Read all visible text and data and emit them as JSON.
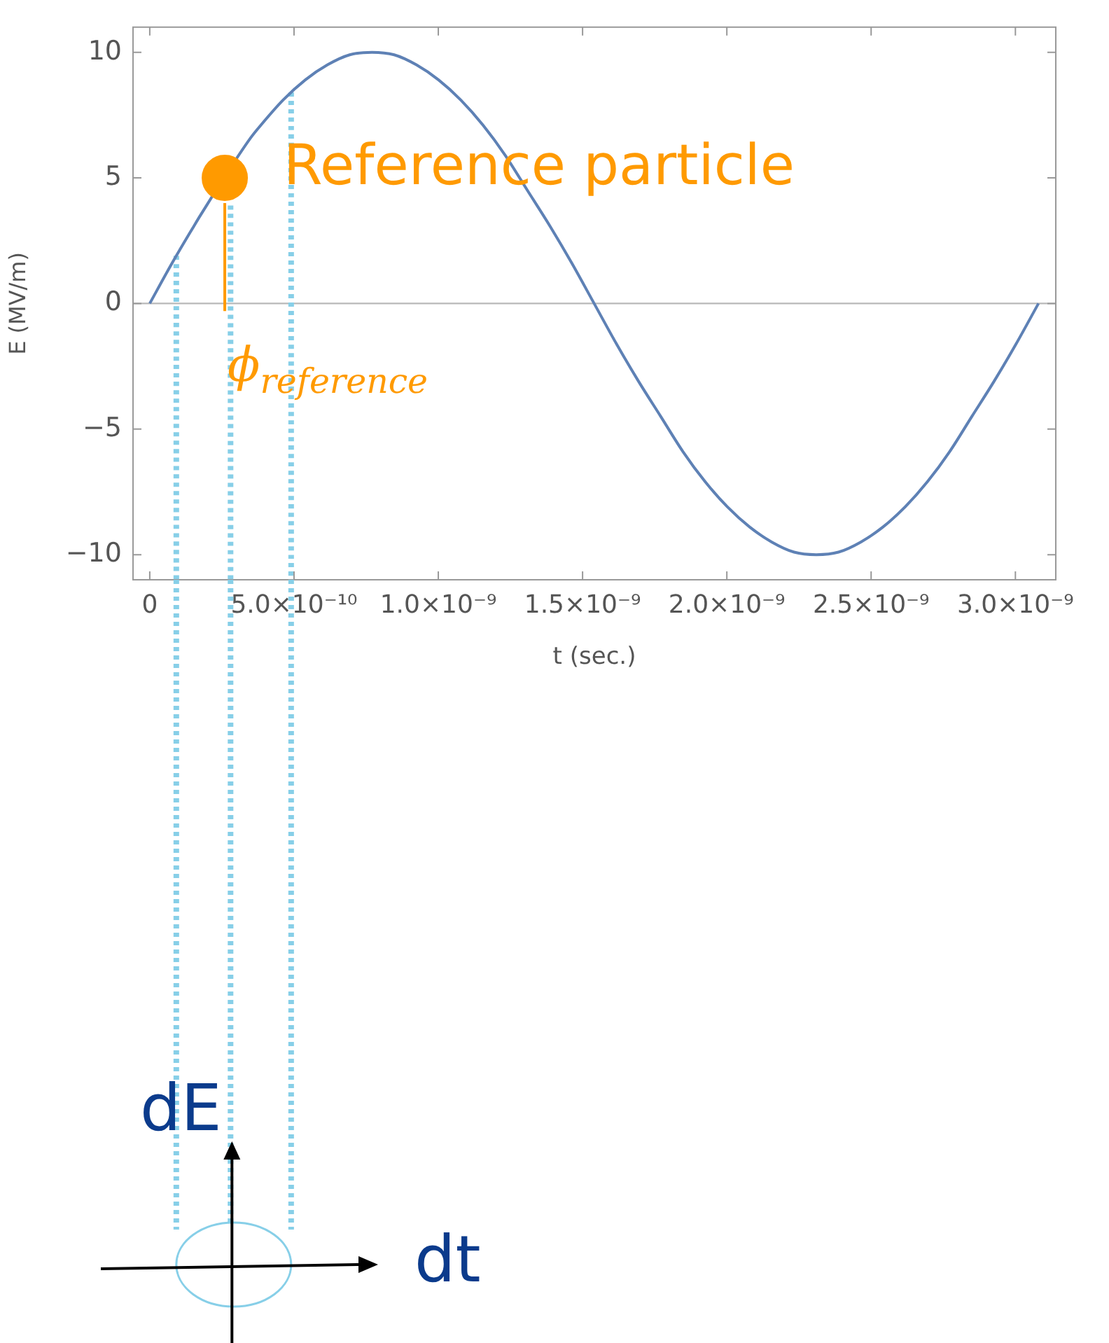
{
  "chart_data": {
    "type": "line",
    "xlabel": "t (sec.)",
    "ylabel": "E (MV/m)",
    "xlim": [
      -5.8e-11,
      3.14e-09
    ],
    "ylim": [
      -11,
      11
    ],
    "xticks": [
      0,
      {
        "value": 5e-10,
        "label": "5.0×10⁻¹⁰"
      },
      {
        "value": 1e-09,
        "label": "1.0×10⁻⁹"
      },
      {
        "value": 1.5e-09,
        "label": "1.5×10⁻⁹"
      },
      {
        "value": 2e-09,
        "label": "2.0×10⁻⁹"
      },
      {
        "value": 2.5e-09,
        "label": "2.5×10⁻⁹"
      },
      {
        "value": 3e-09,
        "label": "3.0×10⁻⁹"
      }
    ],
    "yticks": [
      -10,
      -5,
      0,
      5,
      10
    ],
    "grid": false,
    "legend": false,
    "ref_lines": [
      {
        "axis": "y",
        "value": 0,
        "color": "#b9b9b9"
      }
    ],
    "series": [
      {
        "color": "#5e81b5",
        "x": [
          0,
          7.7e-11,
          1.54e-10,
          1.75e-10,
          3.5e-10,
          3.85e-10,
          4.62e-10,
          5.39e-10,
          6.16e-10,
          6.93e-10,
          7.7e-10,
          8.47e-10,
          9.24e-10,
          1.001e-09,
          1.078e-09,
          1.155e-09,
          1.232e-09,
          1.309e-09,
          1.386e-09,
          1.463e-09,
          1.54e-09,
          1.617e-09,
          1.694e-09,
          1.771e-09,
          1.848e-09,
          1.925e-09,
          2.002e-09,
          2.079e-09,
          2.156e-09,
          2.233e-09,
          2.31e-09,
          2.387e-09,
          2.464e-09,
          2.541e-09,
          2.618e-09,
          2.695e-09,
          2.772e-09,
          2.849e-09,
          2.926e-09,
          3.003e-09,
          3.08e-09
        ],
        "values": [
          0,
          1.6,
          3.1,
          3.5,
          6.6,
          7.1,
          8.1,
          8.9,
          9.5,
          9.9,
          10,
          9.9,
          9.5,
          8.9,
          8.1,
          7.1,
          5.9,
          4.5,
          3.1,
          1.6,
          0,
          -1.6,
          -3.1,
          -4.5,
          -5.9,
          -7.1,
          -8.1,
          -8.9,
          -9.5,
          -9.9,
          -10,
          -9.9,
          -9.5,
          -8.9,
          -8.1,
          -7.1,
          -5.9,
          -4.5,
          -3.1,
          -1.6,
          0
        ],
        "marker": "none",
        "line_style": "solid"
      },
      {
        "color": "#87cfe8",
        "x": [
          9.2e-11,
          9.2e-11
        ],
        "values": [
          1.9,
          -11
        ],
        "marker": "none",
        "line_style": "dotted"
      },
      {
        "color": "#87cfe8",
        "x": [
          2.8e-10,
          2.8e-10
        ],
        "values": [
          3.9,
          -11
        ],
        "marker": "none",
        "line_style": "dotted"
      },
      {
        "color": "#87cfe8",
        "x": [
          4.9e-10,
          4.9e-10
        ],
        "values": [
          8.4,
          -11
        ],
        "marker": "none",
        "line_style": "dotted"
      },
      {
        "color": "#ff9a00",
        "x": [
          2.6e-10,
          2.6e-10
        ],
        "values": [
          4,
          -0.3
        ],
        "marker": "none",
        "line_style": "solid"
      },
      {
        "type": "scatter",
        "color": "#ff9a00",
        "x": [
          2.6e-10
        ],
        "values": [
          5
        ],
        "marker": "circle"
      }
    ],
    "annotations": [
      {
        "text": "Reference particle",
        "x": 2.6e-10,
        "y": 5
      },
      {
        "text": "ϕ$_{reference}$",
        "x": 2.6e-10,
        "y": -0.3
      },
      "dE",
      "dt"
    ]
  }
}
